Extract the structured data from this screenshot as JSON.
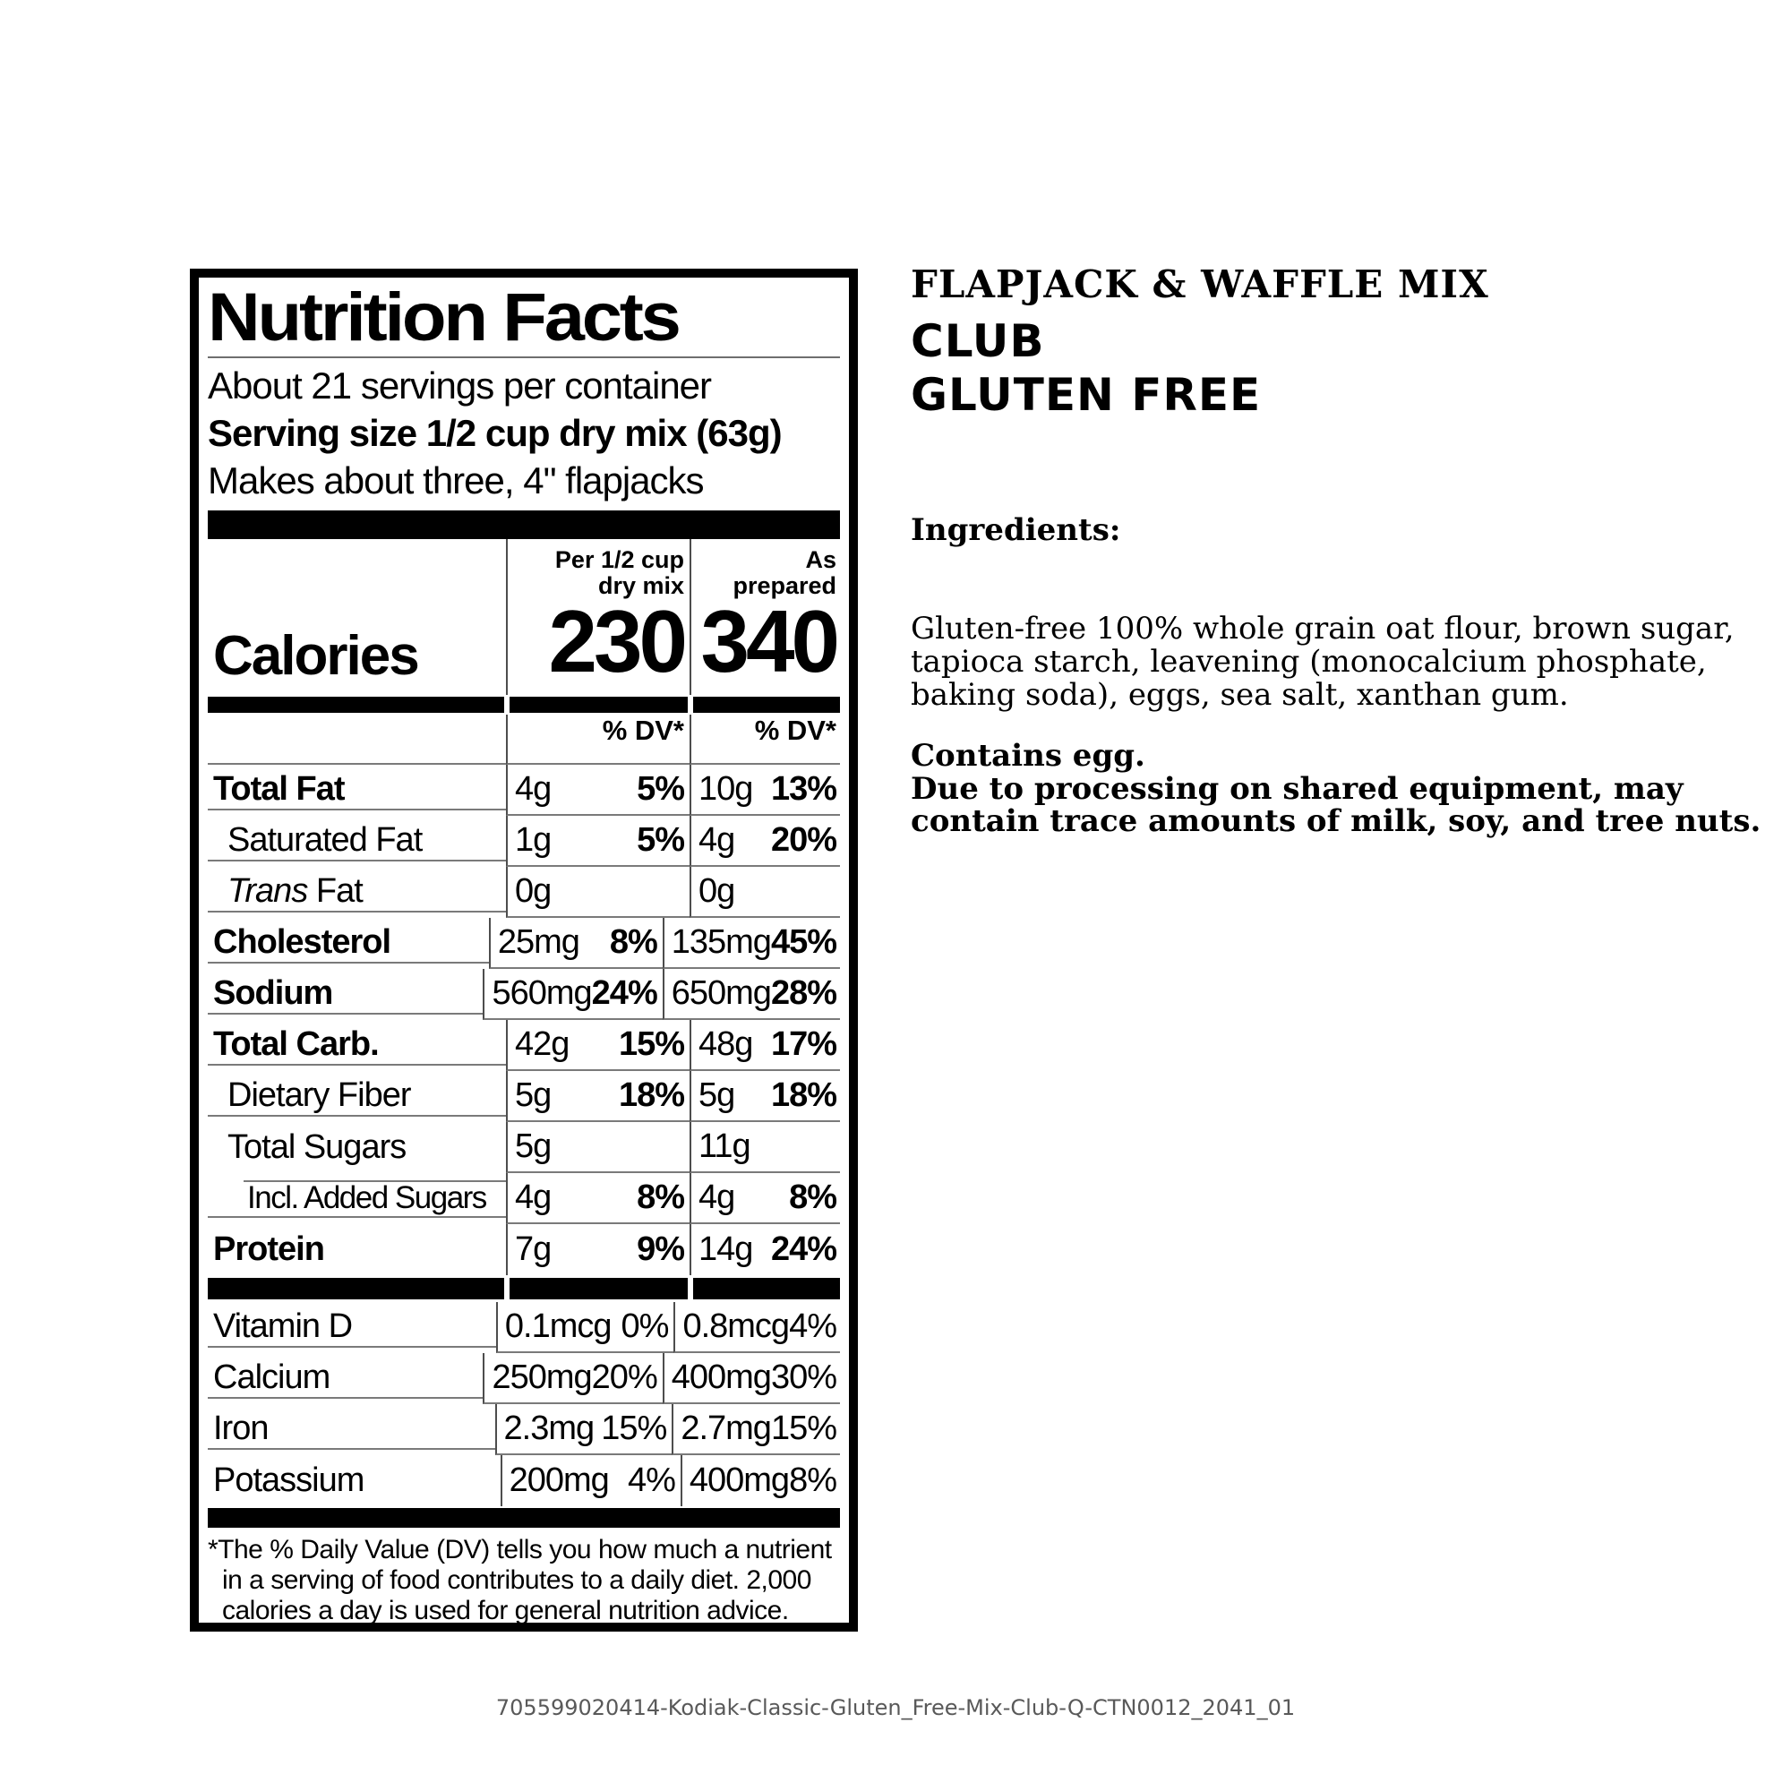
{
  "nutrition_label": {
    "title": "Nutrition Facts",
    "servings_per_container": "About 21 servings per container",
    "serving_size": "Serving size 1/2 cup dry mix (63g)",
    "makes_line": "Makes about three, 4\" flapjacks",
    "column_headers": {
      "col1": "Per 1/2 cup\ndry mix",
      "col2": "As prepared"
    },
    "calories": {
      "label": "Calories",
      "col1": "230",
      "col2": "340"
    },
    "dv_header": "% DV*",
    "nutrient_rows": [
      {
        "name": "Total Fat",
        "bold": true,
        "indent": 0,
        "v1": "4g",
        "p1": "5%",
        "v2": "10g",
        "p2": "13%"
      },
      {
        "name": "Saturated Fat",
        "bold": false,
        "indent": 1,
        "v1": "1g",
        "p1": "5%",
        "v2": "4g",
        "p2": "20%"
      },
      {
        "name_italic": "Trans",
        "name": " Fat",
        "bold": false,
        "indent": 1,
        "v1": "0g",
        "p1": "",
        "v2": "0g",
        "p2": ""
      },
      {
        "name": "Cholesterol",
        "bold": true,
        "indent": 0,
        "v1": "25mg",
        "p1": "8%",
        "v2": "135mg",
        "p2": "45%"
      },
      {
        "name": "Sodium",
        "bold": true,
        "indent": 0,
        "v1": "560mg",
        "p1": "24%",
        "v2": "650mg",
        "p2": "28%"
      },
      {
        "name": "Total Carb.",
        "bold": true,
        "indent": 0,
        "v1": "42g",
        "p1": "15%",
        "v2": "48g",
        "p2": "17%"
      },
      {
        "name": "Dietary Fiber",
        "bold": false,
        "indent": 1,
        "v1": "5g",
        "p1": "18%",
        "v2": "5g",
        "p2": "18%"
      },
      {
        "name": "Total Sugars",
        "bold": false,
        "indent": 1,
        "v1": "5g",
        "p1": "",
        "v2": "11g",
        "p2": ""
      },
      {
        "name": "Incl. Added Sugars",
        "bold": false,
        "indent": 2,
        "v1": "4g",
        "p1": "8%",
        "v2": "4g",
        "p2": "8%"
      },
      {
        "name": "Protein",
        "bold": true,
        "indent": 0,
        "v1": "7g",
        "p1": "9%",
        "v2": "14g",
        "p2": "24%"
      }
    ],
    "vitamin_rows": [
      {
        "name": "Vitamin D",
        "v1": "0.1mcg",
        "p1": "0%",
        "v2": "0.8mcg",
        "p2": "4%"
      },
      {
        "name": "Calcium",
        "v1": "250mg",
        "p1": "20%",
        "v2": "400mg",
        "p2": "30%"
      },
      {
        "name": "Iron",
        "v1": "2.3mg",
        "p1": "15%",
        "v2": "2.7mg",
        "p2": "15%"
      },
      {
        "name": "Potassium",
        "v1": "200mg",
        "p1": "4%",
        "v2": "400mg",
        "p2": "8%"
      }
    ],
    "footnote": "*The % Daily Value (DV) tells you how much a nutrient\nin a serving of food contributes to a daily diet. 2,000\ncalories a day is used for general nutrition advice."
  },
  "product_info": {
    "line1": "FLAPJACK & WAFFLE MIX",
    "line2": "CLUB",
    "line3": "GLUTEN FREE",
    "ingredients_heading": "Ingredients:",
    "ingredients_text": "Gluten-free 100% whole grain oat flour, brown sugar,\ntapioca starch, leavening (monocalcium phosphate,\nbaking soda), eggs, sea salt, xanthan gum.",
    "allergen_text": "Contains egg.\nDue to processing on shared equipment, may\ncontain trace amounts of milk, soy, and tree nuts."
  },
  "footer_code": "705599020414-Kodiak-Classic-Gluten_Free-Mix-Club-Q-CTN0012_2041_01"
}
